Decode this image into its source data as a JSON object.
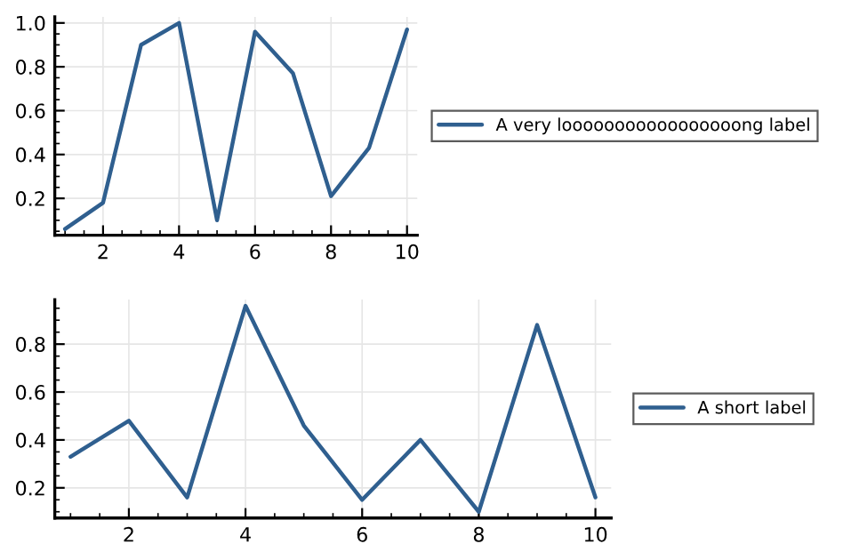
{
  "chart_data": [
    {
      "type": "line",
      "x": [
        1,
        2,
        3,
        4,
        5,
        6,
        7,
        8,
        9,
        10
      ],
      "xlim": [
        0.73,
        10.27
      ],
      "xticks": [
        2,
        4,
        6,
        8,
        10
      ],
      "ylim": [
        0.032,
        1.028
      ],
      "yticks": [
        0.2,
        0.4,
        0.6,
        0.8,
        {
          "value": 1,
          "label": "1.0"
        }
      ],
      "grid": true,
      "legend": "right",
      "series": [
        {
          "name": "A very looooooooooooooooong label",
          "color": "#2f5f8f",
          "values": [
            0.06,
            0.18,
            0.9,
            1.0,
            0.1,
            0.96,
            0.77,
            0.21,
            0.43,
            0.97
          ]
        }
      ]
    },
    {
      "type": "line",
      "x": [
        1,
        2,
        3,
        4,
        5,
        6,
        7,
        8,
        9,
        10
      ],
      "xlim": [
        0.73,
        10.27
      ],
      "xticks": [
        2,
        4,
        6,
        8,
        10
      ],
      "ylim": [
        0.074,
        0.986
      ],
      "yticks": [
        0.2,
        0.4,
        0.6,
        0.8
      ],
      "grid": true,
      "legend": "right",
      "series": [
        {
          "name": "A short label",
          "color": "#2f5f8f",
          "values": [
            0.33,
            0.48,
            0.16,
            0.96,
            0.46,
            0.15,
            0.4,
            0.1,
            0.88,
            0.16
          ]
        }
      ]
    }
  ]
}
